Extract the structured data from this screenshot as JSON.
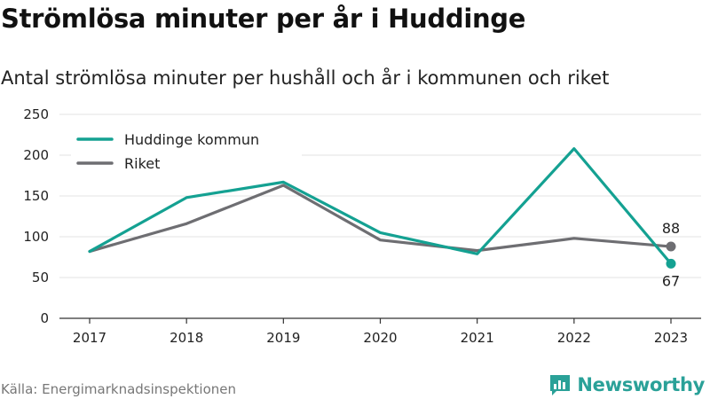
{
  "header": {
    "title": "Strömlösa minuter per år i Huddinge",
    "subtitle": "Antal strömlösa minuter per hushåll och år i kommunen och riket"
  },
  "footer": {
    "source": "Källa: Energimarknadsinspektionen",
    "brand": "Newsworthy"
  },
  "icons": {
    "brand": "bar-chart-icon"
  },
  "colors": {
    "huddinge": "#14a192",
    "riket": "#6e6e72",
    "brand": "#2aa198"
  },
  "chart_data": {
    "type": "line",
    "x": [
      "2017",
      "2018",
      "2019",
      "2020",
      "2021",
      "2022",
      "2023"
    ],
    "ylim": [
      0,
      250
    ],
    "yticks": [
      0,
      50,
      100,
      150,
      200,
      250
    ],
    "grid": true,
    "legend_position": "top-left",
    "series": [
      {
        "name": "Huddinge kommun",
        "values": [
          82,
          148,
          167,
          105,
          79,
          208,
          67
        ],
        "end_label": "67"
      },
      {
        "name": "Riket",
        "values": [
          82,
          116,
          163,
          96,
          83,
          98,
          88
        ],
        "end_label": "88"
      }
    ]
  }
}
